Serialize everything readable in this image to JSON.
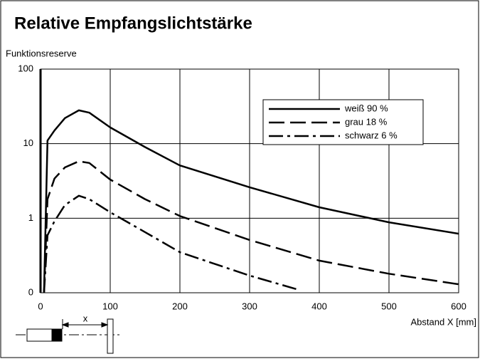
{
  "chart_data": {
    "type": "line",
    "title": "Relative Empfangslichtstärke",
    "ylabel": "Funktionsreserve",
    "xlabel": "Abstand X [mm]",
    "annotation": "x",
    "log_y": true,
    "grid": true,
    "xlim": [
      0,
      600
    ],
    "xticks": [
      0,
      100,
      200,
      300,
      400,
      500,
      600
    ],
    "ylim": [
      0.1,
      100
    ],
    "yticks": [
      {
        "value": 0.1,
        "label": "0"
      },
      1,
      10,
      100
    ],
    "series": [
      {
        "name": "weiß 90 %",
        "color": "#000000",
        "dash": "solid",
        "x": [
          5,
          10,
          20,
          35,
          55,
          70,
          100,
          150,
          200,
          300,
          400,
          500,
          600
        ],
        "values": [
          0.1,
          11,
          15,
          22,
          28,
          26,
          16.5,
          9,
          5.1,
          2.6,
          1.4,
          0.88,
          0.62
        ]
      },
      {
        "name": "grau 18 %",
        "color": "#000000",
        "dash": "dashed",
        "x": [
          5,
          10,
          20,
          35,
          55,
          70,
          100,
          150,
          200,
          300,
          400,
          500,
          600
        ],
        "values": [
          0.1,
          1.8,
          3.4,
          4.8,
          5.8,
          5.5,
          3.3,
          1.8,
          1.07,
          0.51,
          0.27,
          0.18,
          0.13
        ]
      },
      {
        "name": "schwarz 6 %",
        "color": "#000000",
        "dash": "dashdot",
        "x": [
          5,
          10,
          20,
          35,
          55,
          70,
          100,
          150,
          200,
          300,
          370
        ],
        "values": [
          0.1,
          0.59,
          0.91,
          1.5,
          2.0,
          1.8,
          1.2,
          0.65,
          0.35,
          0.17,
          0.11
        ]
      }
    ],
    "legend_position": "upper right"
  }
}
